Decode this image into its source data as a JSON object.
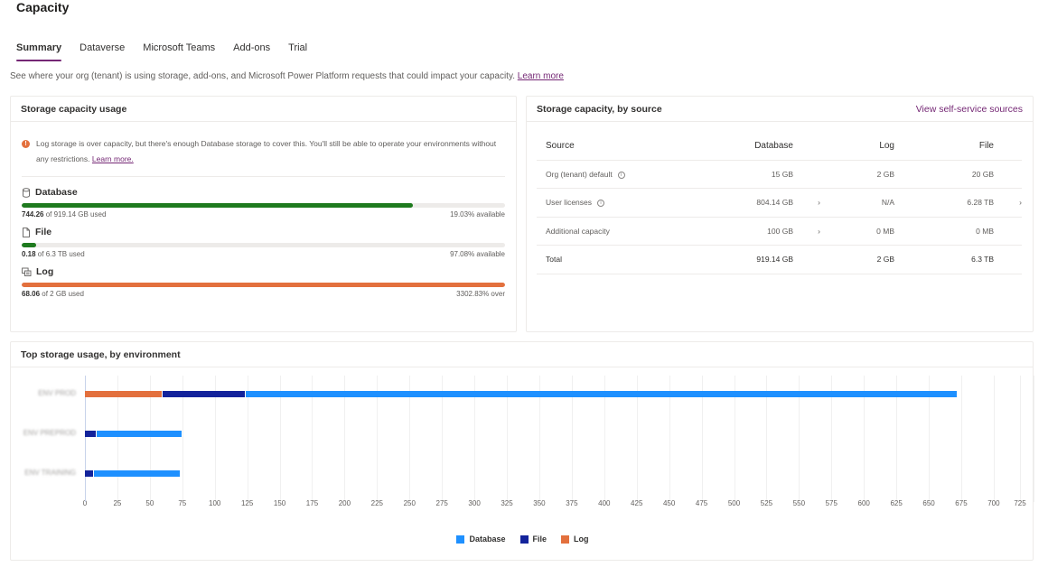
{
  "page": {
    "title": "Capacity",
    "description": "See where your org (tenant) is using storage, add-ons, and Microsoft Power Platform requests that could impact your capacity.",
    "description_link": "Learn more"
  },
  "tabs": [
    {
      "label": "Summary",
      "active": true
    },
    {
      "label": "Dataverse",
      "active": false
    },
    {
      "label": "Microsoft Teams",
      "active": false
    },
    {
      "label": "Add-ons",
      "active": false
    },
    {
      "label": "Trial",
      "active": false
    }
  ],
  "colors": {
    "accent": "#742774",
    "database": "#1e90ff",
    "file": "#13239b",
    "log": "#e3703d",
    "ok": "#1e7a1e",
    "over": "#e3703d"
  },
  "usage": {
    "title": "Storage capacity usage",
    "alert_text": "Log storage is over capacity, but there's enough Database storage to cover this. You'll still be able to operate your environments without any restrictions.",
    "alert_link": "Learn more.",
    "meters": [
      {
        "name": "Database",
        "icon": "database-icon",
        "used": "744.26",
        "of_text": " of 919.14 GB used",
        "status": "19.03% available",
        "percent": 80.97,
        "color": "#1e7a1e"
      },
      {
        "name": "File",
        "icon": "file-icon",
        "used": "0.18",
        "of_text": " of 6.3 TB used",
        "status": "97.08% available",
        "percent": 2.92,
        "color": "#1e7a1e"
      },
      {
        "name": "Log",
        "icon": "log-icon",
        "used": "68.06",
        "of_text": " of 2 GB used",
        "status": "3302.83% over",
        "percent": 100,
        "color": "#e3703d"
      }
    ]
  },
  "source": {
    "title": "Storage capacity, by source",
    "link": "View self-service sources",
    "columns": [
      "Source",
      "Database",
      "Log",
      "File"
    ],
    "rows": [
      {
        "source": "Org (tenant) default",
        "info": true,
        "database": "15 GB",
        "db_chevron": false,
        "log": "2 GB",
        "file": "20 GB",
        "file_chevron": false
      },
      {
        "source": "User licenses",
        "info": true,
        "database": "804.14 GB",
        "db_chevron": true,
        "log": "N/A",
        "file": "6.28 TB",
        "file_chevron": true
      },
      {
        "source": "Additional capacity",
        "info": false,
        "database": "100 GB",
        "db_chevron": true,
        "log": "0 MB",
        "file": "0 MB",
        "file_chevron": false
      },
      {
        "source": "Total",
        "info": false,
        "database": "919.14 GB",
        "db_chevron": false,
        "log": "2 GB",
        "file": "6.3 TB",
        "file_chevron": false,
        "total": true
      }
    ]
  },
  "chart_title": "Top storage usage, by environment",
  "chart_data": {
    "type": "bar",
    "orientation": "horizontal",
    "stacked": true,
    "title": "Top storage usage, by environment",
    "categories": [
      "[blurred env 1]",
      "[blurred env 2]",
      "[blurred env 3]"
    ],
    "series": [
      {
        "name": "Log",
        "color": "#e3703d",
        "values": [
          60,
          0,
          0
        ]
      },
      {
        "name": "File",
        "color": "#13239b",
        "values": [
          64,
          9,
          7
        ]
      },
      {
        "name": "Database",
        "color": "#1e90ff",
        "values": [
          548,
          66,
          67
        ]
      }
    ],
    "stack_order": [
      "Log",
      "File",
      "Database"
    ],
    "x_ticks": [
      0,
      25,
      50,
      75,
      100,
      125,
      150,
      175,
      200,
      225,
      250,
      275,
      300,
      325,
      350,
      375,
      400,
      425,
      450,
      475,
      500,
      525,
      550,
      575,
      600,
      625,
      650,
      675,
      700,
      725
    ],
    "xlim": [
      0,
      735
    ],
    "grid": true,
    "legend": [
      "Database",
      "File",
      "Log"
    ],
    "legend_position": "bottom",
    "xlabel": "",
    "ylabel": ""
  }
}
